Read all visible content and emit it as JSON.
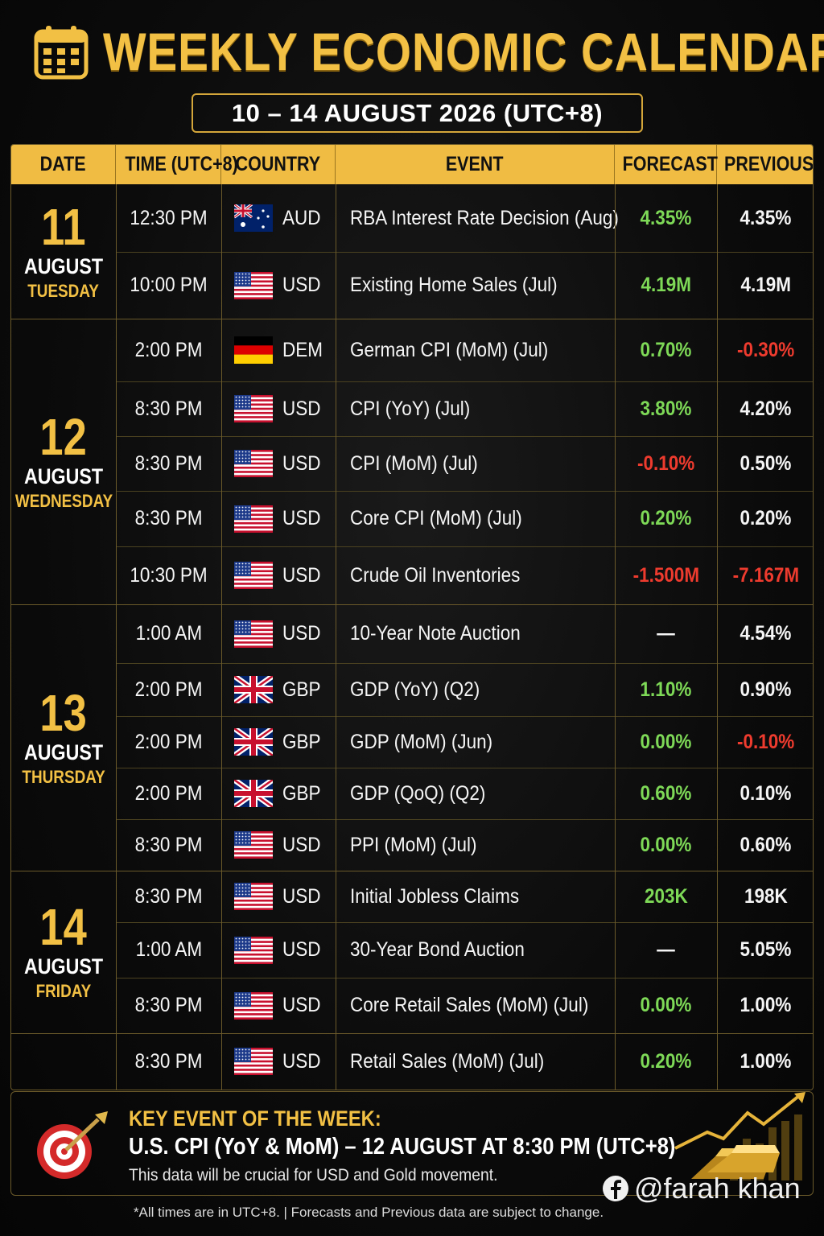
{
  "header": {
    "title": "WEEKLY ECONOMIC CALENDAR",
    "date_range": "10 – 14 AUGUST 2026 (UTC+8)"
  },
  "columns": {
    "date": "DATE",
    "time": "TIME (UTC+8)",
    "country": "COUNTRY",
    "event": "EVENT",
    "forecast": "FORECAST",
    "previous": "PREVIOUS"
  },
  "days": [
    {
      "num": "11",
      "month": "AUGUST",
      "weekday": "TUESDAY"
    },
    {
      "num": "12",
      "month": "AUGUST",
      "weekday": "WEDNESDAY"
    },
    {
      "num": "13",
      "month": "AUGUST",
      "weekday": "THURSDAY"
    },
    {
      "num": "14",
      "month": "AUGUST",
      "weekday": "FRIDAY"
    }
  ],
  "rows": [
    {
      "time": "12:30 PM",
      "country": "AUD",
      "flag": "australia-flag-icon",
      "event": "RBA Interest Rate Decision (Aug)",
      "forecast": "4.35%",
      "forecast_color": "green",
      "previous": "4.35%",
      "previous_color": "white"
    },
    {
      "time": "10:00 PM",
      "country": "USD",
      "flag": "us-flag-icon",
      "event": "Existing Home Sales (Jul)",
      "forecast": "4.19M",
      "forecast_color": "green",
      "previous": "4.19M",
      "previous_color": "white"
    },
    {
      "time": "2:00 PM",
      "country": "DEM",
      "flag": "germany-flag-icon",
      "event": "German CPI (MoM) (Jul)",
      "forecast": "0.70%",
      "forecast_color": "green",
      "previous": "-0.30%",
      "previous_color": "red"
    },
    {
      "time": "8:30 PM",
      "country": "USD",
      "flag": "us-flag-icon",
      "event": "CPI (YoY) (Jul)",
      "forecast": "3.80%",
      "forecast_color": "green",
      "previous": "4.20%",
      "previous_color": "white"
    },
    {
      "time": "8:30 PM",
      "country": "USD",
      "flag": "us-flag-icon",
      "event": "CPI (MoM) (Jul)",
      "forecast": "-0.10%",
      "forecast_color": "red",
      "previous": "0.50%",
      "previous_color": "white"
    },
    {
      "time": "8:30 PM",
      "country": "USD",
      "flag": "us-flag-icon",
      "event": "Core CPI (MoM) (Jul)",
      "forecast": "0.20%",
      "forecast_color": "green",
      "previous": "0.20%",
      "previous_color": "white"
    },
    {
      "time": "10:30 PM",
      "country": "USD",
      "flag": "us-flag-icon",
      "event": "Crude Oil Inventories",
      "forecast": "-1.500M",
      "forecast_color": "red",
      "previous": "-7.167M",
      "previous_color": "red"
    },
    {
      "time": "1:00 AM",
      "country": "USD",
      "flag": "us-flag-icon",
      "event": "10-Year Note Auction",
      "forecast": "—",
      "forecast_color": "white",
      "previous": "4.54%",
      "previous_color": "white"
    },
    {
      "time": "2:00 PM",
      "country": "GBP",
      "flag": "uk-flag-icon",
      "event": "GDP (YoY) (Q2)",
      "forecast": "1.10%",
      "forecast_color": "green",
      "previous": "0.90%",
      "previous_color": "white"
    },
    {
      "time": "2:00 PM",
      "country": "GBP",
      "flag": "uk-flag-icon",
      "event": "GDP (MoM) (Jun)",
      "forecast": "0.00%",
      "forecast_color": "green",
      "previous": "-0.10%",
      "previous_color": "red"
    },
    {
      "time": "2:00 PM",
      "country": "GBP",
      "flag": "uk-flag-icon",
      "event": "GDP (QoQ) (Q2)",
      "forecast": "0.60%",
      "forecast_color": "green",
      "previous": "0.10%",
      "previous_color": "white"
    },
    {
      "time": "8:30 PM",
      "country": "USD",
      "flag": "us-flag-icon",
      "event": "PPI (MoM) (Jul)",
      "forecast": "0.00%",
      "forecast_color": "green",
      "previous": "0.60%",
      "previous_color": "white"
    },
    {
      "time": "8:30 PM",
      "country": "USD",
      "flag": "us-flag-icon",
      "event": "Initial Jobless Claims",
      "forecast": "203K",
      "forecast_color": "green",
      "previous": "198K",
      "previous_color": "white"
    },
    {
      "time": "1:00 AM",
      "country": "USD",
      "flag": "us-flag-icon",
      "event": "30-Year Bond Auction",
      "forecast": "—",
      "forecast_color": "white",
      "previous": "5.05%",
      "previous_color": "white"
    },
    {
      "time": "8:30 PM",
      "country": "USD",
      "flag": "us-flag-icon",
      "event": "Core Retail Sales (MoM) (Jul)",
      "forecast": "0.00%",
      "forecast_color": "green",
      "previous": "1.00%",
      "previous_color": "white"
    },
    {
      "time": "8:30 PM",
      "country": "USD",
      "flag": "us-flag-icon",
      "event": "Retail Sales (MoM) (Jul)",
      "forecast": "0.20%",
      "forecast_color": "green",
      "previous": "1.00%",
      "previous_color": "white"
    }
  ],
  "key_event": {
    "title": "KEY EVENT OF THE WEEK:",
    "event": "U.S. CPI (YoY & MoM) – 12 AUGUST AT 8:30 PM (UTC+8)",
    "description": "This data will be crucial for USD and Gold movement.",
    "icon": "target-icon",
    "illustration": "gold-bars-chart-icon"
  },
  "handle": "@farah khan",
  "footnote": "*All times are in UTC+8.  |  Forecasts and Previous data are subject to change.",
  "colors": {
    "accent": "#f2c044",
    "header_bg": "#f0bc43",
    "positive": "#7ed957",
    "negative": "#ee3b2e",
    "background": "#0b0b0b"
  }
}
